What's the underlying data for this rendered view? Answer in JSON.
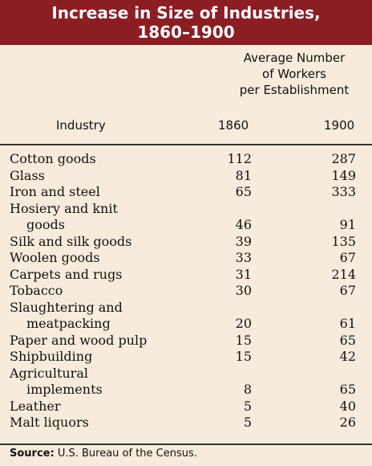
{
  "title": {
    "line1": "Increase in Size of Industries,",
    "line2": "1860–1900"
  },
  "header": {
    "group": [
      "Average Number",
      "of Workers",
      "per Establishment"
    ],
    "industry": "Industry",
    "year1": "1860",
    "year2": "1900"
  },
  "rows": [
    {
      "name": "Cotton goods",
      "v1860": "112",
      "v1900": "287"
    },
    {
      "name": "Glass",
      "v1860": "81",
      "v1900": "149"
    },
    {
      "name": "Iron and steel",
      "v1860": "65",
      "v1900": "333"
    },
    {
      "name": "Hosiery and knit"
    },
    {
      "name": "goods",
      "v1860": "46",
      "v1900": "91"
    },
    {
      "name": "Silk and silk goods",
      "v1860": "39",
      "v1900": "135"
    },
    {
      "name": "Woolen goods",
      "v1860": "33",
      "v1900": "67"
    },
    {
      "name": "Carpets and rugs",
      "v1860": "31",
      "v1900": "214"
    },
    {
      "name": "Tobacco",
      "v1860": "30",
      "v1900": "67"
    },
    {
      "name": "Slaughtering and"
    },
    {
      "name": "meatpacking",
      "v1860": "20",
      "v1900": "61"
    },
    {
      "name": "Paper and wood pulp",
      "v1860": "15",
      "v1900": "65"
    },
    {
      "name": "Shipbuilding",
      "v1860": "15",
      "v1900": "42"
    },
    {
      "name": "Agricultural"
    },
    {
      "name": "implements",
      "v1860": "8",
      "v1900": "65"
    },
    {
      "name": "Leather",
      "v1860": "5",
      "v1900": "40"
    },
    {
      "name": "Malt liquors",
      "v1860": "5",
      "v1900": "26"
    }
  ],
  "source": {
    "label": "Source:",
    "text": "U.S. Bureau of the Census."
  },
  "colors": {
    "title_bar": "#8b1e24",
    "background": "#f7ecdc"
  }
}
